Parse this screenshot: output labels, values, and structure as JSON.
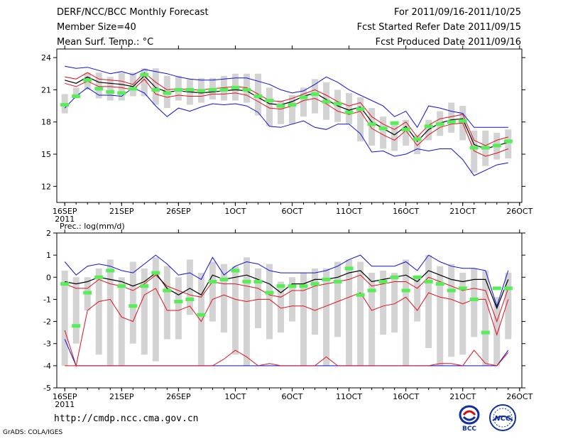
{
  "header": {
    "title": "DERF/NCC/BCC Monthly Forecast",
    "member_size": "Member Size=40",
    "variable": "Mean Surf. Temp.: °C",
    "period": "For 2011/09/16-2011/10/25",
    "started": "Fcst Started Refer Date 2011/09/15",
    "produced": "Fcst Produced Date 2011/09/16"
  },
  "footer": {
    "url": "http://cmdp.ncc.cma.gov.cn",
    "credit": "GrADS: COLA/IGES",
    "logos": [
      "BCC",
      "NCC"
    ]
  },
  "colors": {
    "box": "#d3d3d3",
    "median": "#55ee55",
    "outer": "#1010d8",
    "inner": "#e01020",
    "mean": "#000000"
  },
  "chart_data": [
    {
      "type": "line",
      "title": "Mean Surf. Temp.: °C",
      "x": [
        1,
        2,
        3,
        4,
        5,
        6,
        7,
        8,
        9,
        10,
        11,
        12,
        13,
        14,
        15,
        16,
        17,
        18,
        19,
        20,
        21,
        22,
        23,
        24,
        25,
        26,
        27,
        28,
        29,
        30,
        31,
        32,
        33,
        34,
        35,
        36,
        37,
        38,
        39,
        40
      ],
      "xticks": [
        {
          "x": 1,
          "label": "16SEP",
          "sub": "2011"
        },
        {
          "x": 6,
          "label": "21SEP"
        },
        {
          "x": 11,
          "label": "26SEP"
        },
        {
          "x": 16,
          "label": "1OCT"
        },
        {
          "x": 21,
          "label": "6OCT"
        },
        {
          "x": 26,
          "label": "11OCT"
        },
        {
          "x": 31,
          "label": "16OCT"
        },
        {
          "x": 36,
          "label": "21OCT"
        },
        {
          "x": 41,
          "label": "26OCT"
        }
      ],
      "ylim": [
        10.5,
        24.8
      ],
      "yticks": [
        12,
        15,
        18,
        21,
        24
      ],
      "series": [
        {
          "name": "max",
          "values": [
            23.2,
            23.0,
            23.1,
            22.8,
            22.5,
            22.7,
            22.4,
            22.9,
            22.7,
            22.5,
            22.2,
            22.0,
            21.9,
            21.9,
            22.0,
            22.1,
            22.1,
            21.8,
            21.5,
            21.0,
            20.7,
            20.9,
            21.5,
            22.2,
            21.7,
            21.0,
            20.5,
            20.0,
            19.5,
            18.5,
            19.0,
            17.5,
            19.5,
            19.3,
            19.0,
            18.8,
            17.5,
            17.5,
            17.5,
            17.5
          ]
        },
        {
          "name": "upper",
          "values": [
            22.2,
            22.0,
            22.6,
            22.0,
            21.9,
            21.8,
            21.5,
            22.6,
            21.7,
            21.0,
            21.1,
            21.0,
            21.0,
            21.1,
            21.2,
            21.3,
            21.2,
            20.6,
            20.0,
            19.9,
            20.2,
            20.6,
            21.0,
            20.5,
            19.9,
            19.5,
            19.8,
            18.5,
            17.8,
            17.3,
            18.0,
            16.6,
            17.7,
            18.3,
            18.5,
            18.7,
            16.3,
            15.8,
            16.3,
            16.6
          ]
        },
        {
          "name": "mean",
          "values": [
            21.9,
            21.6,
            22.2,
            21.7,
            21.6,
            21.5,
            21.3,
            22.3,
            21.2,
            20.8,
            20.9,
            20.8,
            20.7,
            20.8,
            20.9,
            21.0,
            20.9,
            20.3,
            19.7,
            19.6,
            19.9,
            20.4,
            20.7,
            20.1,
            19.5,
            19.1,
            19.4,
            18.0,
            17.4,
            16.8,
            17.6,
            16.2,
            17.3,
            17.9,
            18.2,
            18.3,
            15.9,
            15.5,
            15.8,
            16.1
          ]
        },
        {
          "name": "lower",
          "values": [
            21.6,
            21.3,
            21.8,
            21.3,
            21.3,
            21.2,
            21.0,
            22.0,
            20.6,
            20.3,
            20.5,
            20.4,
            20.4,
            20.6,
            20.6,
            20.7,
            20.5,
            19.9,
            19.3,
            19.2,
            19.5,
            20.0,
            20.2,
            19.7,
            19.0,
            18.7,
            19.0,
            17.4,
            16.8,
            16.3,
            17.2,
            15.8,
            16.8,
            17.5,
            17.8,
            17.9,
            15.3,
            14.8,
            15.1,
            15.5
          ]
        },
        {
          "name": "min",
          "values": [
            19.3,
            20.4,
            21.2,
            20.5,
            20.5,
            20.4,
            21.2,
            20.7,
            19.5,
            18.5,
            19.3,
            19.0,
            19.4,
            19.7,
            19.6,
            19.7,
            19.5,
            18.9,
            17.6,
            17.5,
            17.8,
            18.1,
            17.5,
            17.3,
            17.8,
            17.8,
            16.9,
            15.2,
            15.3,
            14.8,
            15.0,
            15.5,
            15.3,
            15.5,
            15.5,
            14.5,
            13.0,
            13.5,
            14.0,
            14.2
          ]
        },
        {
          "name": "box_top",
          "values": [
            20.6,
            21.2,
            22.6,
            22.6,
            22.2,
            22.6,
            22.6,
            23.0,
            23.0,
            22.3,
            22.3,
            22.0,
            22.1,
            22.1,
            22.3,
            22.5,
            22.5,
            22.5,
            21.2,
            20.0,
            20.5,
            21.2,
            22.0,
            21.7,
            21.0,
            20.7,
            20.3,
            19.3,
            18.5,
            17.8,
            18.2,
            16.8,
            18.2,
            19.0,
            19.8,
            19.5,
            17.2,
            17.2,
            17.0,
            17.3
          ]
        },
        {
          "name": "box_bottom",
          "values": [
            18.8,
            20.2,
            21.0,
            20.2,
            20.0,
            20.0,
            20.4,
            20.4,
            19.6,
            19.3,
            20.0,
            19.6,
            19.8,
            20.1,
            20.0,
            20.0,
            19.8,
            18.6,
            17.6,
            17.8,
            17.8,
            18.5,
            18.8,
            18.2,
            18.0,
            17.8,
            16.2,
            15.8,
            15.5,
            15.3,
            15.8,
            15.0,
            16.3,
            16.7,
            17.0,
            16.3,
            13.3,
            13.9,
            14.5,
            14.6
          ]
        },
        {
          "name": "median",
          "values": [
            19.6,
            20.4,
            21.9,
            21.1,
            20.8,
            20.7,
            21.1,
            22.4,
            21.0,
            20.7,
            21.0,
            21.0,
            20.9,
            21.0,
            21.0,
            21.2,
            21.0,
            20.4,
            20.0,
            19.5,
            19.6,
            20.3,
            20.6,
            19.9,
            19.7,
            18.9,
            19.2,
            17.8,
            17.4,
            17.9,
            17.3,
            16.4,
            17.6,
            17.8,
            18.0,
            18.1,
            15.6,
            15.6,
            15.8,
            16.2
          ]
        }
      ]
    },
    {
      "type": "line",
      "title": "Prec.: log(mm/d)",
      "x": [
        1,
        2,
        3,
        4,
        5,
        6,
        7,
        8,
        9,
        10,
        11,
        12,
        13,
        14,
        15,
        16,
        17,
        18,
        19,
        20,
        21,
        22,
        23,
        24,
        25,
        26,
        27,
        28,
        29,
        30,
        31,
        32,
        33,
        34,
        35,
        36,
        37,
        38,
        39,
        40
      ],
      "xticks": [
        {
          "x": 1,
          "label": "16SEP",
          "sub": "2011"
        },
        {
          "x": 6,
          "label": "21SEP"
        },
        {
          "x": 11,
          "label": "26SEP"
        },
        {
          "x": 16,
          "label": "1OCT"
        },
        {
          "x": 21,
          "label": "6OCT"
        },
        {
          "x": 26,
          "label": "11OCT"
        },
        {
          "x": 31,
          "label": "16OCT"
        },
        {
          "x": 36,
          "label": "21OCT"
        },
        {
          "x": 41,
          "label": "26OCT"
        }
      ],
      "ylim": [
        -5,
        2
      ],
      "yticks": [
        -5,
        -4,
        -3,
        -2,
        -1,
        0,
        1,
        2
      ],
      "series": [
        {
          "name": "max",
          "values": [
            0.7,
            0.1,
            0.5,
            0.6,
            0.5,
            0.3,
            0.2,
            0.6,
            1.0,
            0.6,
            0.1,
            0.2,
            -0.1,
            0.9,
            0.1,
            0.5,
            0.7,
            0.6,
            0.3,
            0.2,
            0.2,
            0.2,
            0.2,
            0.3,
            0.5,
            0.8,
            1.0,
            0.5,
            0.5,
            0.5,
            0.7,
            0.3,
            1.0,
            0.7,
            0.5,
            0.4,
            0.4,
            0.3,
            -1.3,
            0.3
          ]
        },
        {
          "name": "upper",
          "values": [
            -0.3,
            -0.5,
            -0.5,
            -0.1,
            -0.3,
            -0.4,
            -0.6,
            -0.3,
            0.1,
            -0.4,
            -0.6,
            -0.8,
            -0.9,
            -0.2,
            -0.3,
            -0.3,
            -0.4,
            -0.5,
            -0.8,
            -0.9,
            -0.6,
            -0.6,
            -0.4,
            -0.3,
            -0.2,
            -0.1,
            0.1,
            -0.4,
            -0.3,
            -0.2,
            -0.2,
            -0.5,
            0.0,
            -0.2,
            -0.4,
            -0.6,
            -0.5,
            -0.6,
            -2.0,
            -0.5
          ]
        },
        {
          "name": "mean",
          "values": [
            -0.2,
            -0.3,
            -0.2,
            0.0,
            -0.1,
            -0.2,
            -0.4,
            -0.2,
            0.2,
            -0.5,
            -0.8,
            -0.5,
            -0.8,
            0.1,
            -0.1,
            0.0,
            0.1,
            -0.1,
            -0.3,
            -0.7,
            -0.3,
            -0.3,
            -0.1,
            -0.1,
            0.0,
            0.2,
            0.3,
            -0.2,
            -0.1,
            0.0,
            0.1,
            -0.2,
            0.3,
            0.1,
            -0.1,
            -0.2,
            -0.1,
            -0.1,
            -1.4,
            -0.1
          ]
        },
        {
          "name": "lower",
          "values": [
            -2.4,
            -4.0,
            -1.5,
            -1.1,
            -1.0,
            -1.8,
            -2.0,
            -0.8,
            -0.5,
            -1.5,
            -1.5,
            -1.3,
            -2.0,
            -1.0,
            -0.8,
            -1.0,
            -1.1,
            -1.0,
            -1.0,
            -1.4,
            -1.3,
            -1.3,
            -1.5,
            -1.3,
            -1.1,
            -0.9,
            -0.7,
            -1.5,
            -1.3,
            -1.2,
            -0.9,
            -1.5,
            -0.7,
            -0.9,
            -1.0,
            -1.2,
            -1.0,
            -1.0,
            -2.6,
            -1.0
          ]
        },
        {
          "name": "min",
          "values": [
            -2.8,
            -4.0,
            -4.0,
            -4.0,
            -4.0,
            -4.0,
            -4.0,
            -4.0,
            -4.0,
            -4.0,
            -4.0,
            -4.0,
            -4.0,
            -4.0,
            -4.0,
            -4.0,
            -4.0,
            -4.0,
            -4.0,
            -4.0,
            -4.0,
            -4.0,
            -4.0,
            -4.0,
            -4.0,
            -4.0,
            -4.0,
            -4.0,
            -4.0,
            -4.0,
            -4.0,
            -4.0,
            -4.0,
            -4.0,
            -4.0,
            -4.0,
            -4.0,
            -4.0,
            -4.0,
            -3.3
          ]
        },
        {
          "name": "lower_min",
          "values": [
            -4.0,
            -4.0,
            -4.0,
            -4.0,
            -4.0,
            -4.0,
            -4.0,
            -4.0,
            -4.0,
            -4.0,
            -4.0,
            -4.0,
            -4.0,
            -4.0,
            -3.7,
            -3.3,
            -3.6,
            -4.0,
            -3.9,
            -4.0,
            -4.0,
            -4.0,
            -4.0,
            -3.6,
            -4.0,
            -4.0,
            -4.0,
            -4.0,
            -4.0,
            -4.0,
            -4.0,
            -4.0,
            -4.0,
            -3.9,
            -3.9,
            -4.0,
            -3.3,
            -3.9,
            -4.0,
            -3.4
          ]
        },
        {
          "name": "box_top",
          "values": [
            0.3,
            0.0,
            0.0,
            0.4,
            0.8,
            0.0,
            0.7,
            0.4,
            0.9,
            0.5,
            0.0,
            0.8,
            0.2,
            0.7,
            0.6,
            0.5,
            0.9,
            0.4,
            0.6,
            -0.2,
            0.0,
            0.2,
            0.4,
            0.4,
            0.7,
            0.8,
            0.7,
            0.2,
            0.3,
            0.2,
            0.8,
            0.0,
            1.0,
            0.5,
            0.6,
            0.2,
            0.4,
            0.3,
            -0.9,
            0.2
          ]
        },
        {
          "name": "box_bottom",
          "values": [
            -4.0,
            -3.0,
            -1.5,
            -3.5,
            -4.0,
            -4.0,
            -3.0,
            -3.5,
            -3.8,
            -2.8,
            -2.8,
            -1.7,
            -4.0,
            -2.0,
            -2.5,
            -3.5,
            -4.0,
            -2.3,
            -2.8,
            -2.5,
            -2.0,
            -4.0,
            -2.6,
            -4.0,
            -2.7,
            -4.0,
            -4.0,
            -4.0,
            -2.6,
            -2.5,
            -4.0,
            -2.0,
            -3.2,
            -4.0,
            -3.6,
            -3.5,
            -2.7,
            -4.0,
            -4.0,
            -2.8
          ]
        },
        {
          "name": "median",
          "values": [
            -0.3,
            -2.2,
            -0.7,
            0.0,
            0.3,
            -0.4,
            -1.3,
            -0.4,
            0.2,
            -0.6,
            -1.1,
            -1.0,
            -1.7,
            -0.2,
            -0.1,
            0.3,
            -0.2,
            -0.2,
            -0.7,
            -0.4,
            -0.4,
            -0.4,
            -0.3,
            -0.1,
            -0.2,
            0.4,
            -0.8,
            -0.6,
            -0.2,
            0.0,
            -0.6,
            0.0,
            -0.2,
            -0.3,
            -0.6,
            -0.5,
            -1.0,
            -2.5,
            -0.5,
            -0.5
          ]
        }
      ]
    }
  ]
}
